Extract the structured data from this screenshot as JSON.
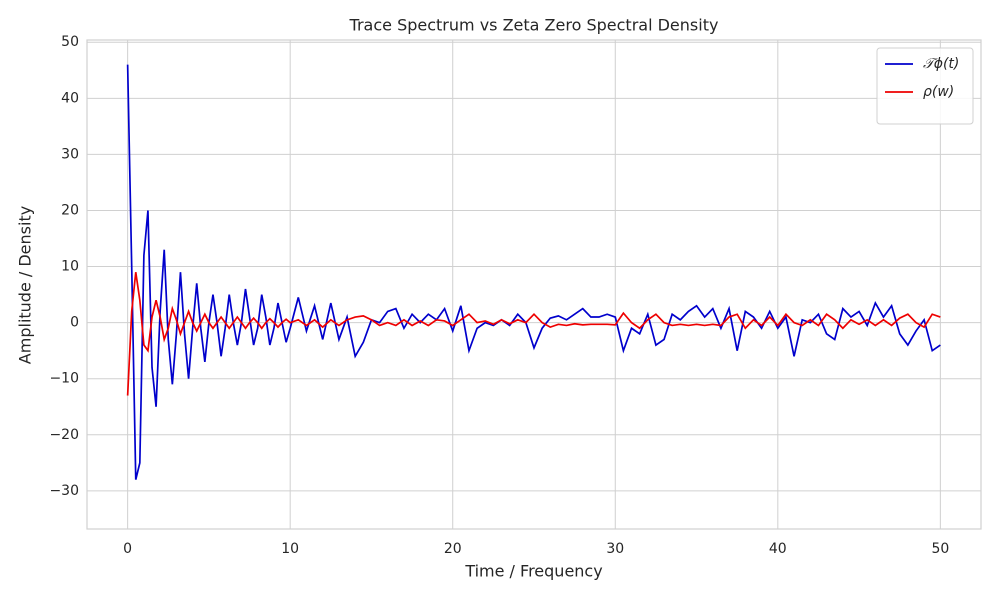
{
  "chart_data": {
    "type": "line",
    "title": "Trace Spectrum vs Zeta Zero Spectral Density",
    "xlabel": "Time / Frequency",
    "ylabel": "Amplitude / Density",
    "x": [
      0,
      0.25,
      0.5,
      0.75,
      1,
      1.25,
      1.5,
      1.75,
      2,
      2.25,
      2.5,
      2.75,
      3,
      3.25,
      3.5,
      3.75,
      4,
      4.25,
      4.5,
      4.75,
      5,
      5.25,
      5.5,
      5.75,
      6,
      6.25,
      6.5,
      6.75,
      7,
      7.25,
      7.5,
      7.75,
      8,
      8.25,
      8.5,
      8.75,
      9,
      9.25,
      9.5,
      9.75,
      10,
      10.5,
      11,
      11.5,
      12,
      12.5,
      13,
      13.5,
      14,
      14.5,
      15,
      15.5,
      16,
      16.5,
      17,
      17.5,
      18,
      18.5,
      19,
      19.5,
      20,
      20.5,
      21,
      21.5,
      22,
      22.5,
      23,
      23.5,
      24,
      24.5,
      25,
      25.5,
      26,
      26.5,
      27,
      27.5,
      28,
      28.5,
      29,
      29.5,
      30,
      30.5,
      31,
      31.5,
      32,
      32.5,
      33,
      33.5,
      34,
      34.5,
      35,
      35.5,
      36,
      36.5,
      37,
      37.5,
      38,
      38.5,
      39,
      39.5,
      40,
      40.5,
      41,
      41.5,
      42,
      42.5,
      43,
      43.5,
      44,
      44.5,
      45,
      45.5,
      46,
      46.5,
      47,
      47.5,
      48,
      48.5,
      49,
      49.5,
      50
    ],
    "series": [
      {
        "name": "𝒯ϕ(t)",
        "color": "#0000cc",
        "values": [
          46,
          10,
          -28,
          -25,
          12,
          20,
          -8,
          -15,
          2,
          13,
          -3,
          -11,
          -2,
          9,
          -2,
          -10,
          -1,
          7,
          -1,
          -7,
          0,
          5,
          0,
          -6,
          -1,
          5,
          0,
          -4,
          0,
          6,
          1,
          -4,
          -1,
          5,
          1,
          -4,
          -1,
          3.5,
          0,
          -3.5,
          -1,
          4.5,
          -1.5,
          3,
          -3,
          3.5,
          -3,
          1,
          -6,
          -3.5,
          0.5,
          0,
          2,
          2.5,
          -1,
          1.5,
          0,
          1.5,
          0.5,
          2.5,
          -1.5,
          3,
          -5,
          -1,
          0,
          -0.5,
          0.5,
          -0.5,
          1.5,
          0,
          -4.5,
          -1,
          0.8,
          1.2,
          0.5,
          1.5,
          2.5,
          1,
          1,
          1.5,
          1,
          -5,
          -1,
          -2,
          1.5,
          -4,
          -3,
          1.5,
          0.5,
          2,
          3,
          1,
          2.5,
          -1,
          2.5,
          -5,
          2,
          1,
          -1,
          2,
          -1,
          1,
          -6,
          0.5,
          0,
          1.5,
          -2,
          -3,
          2.5,
          1,
          2,
          -0.5,
          3.5,
          1,
          3,
          -2,
          -4,
          -1.5,
          0.5,
          -5,
          -4
        ]
      },
      {
        "name": "ρ(w)",
        "color": "#ee0000",
        "values": [
          -13,
          2,
          9,
          4,
          -4,
          -5,
          1,
          4,
          1,
          -3,
          -1,
          2.5,
          0.5,
          -2,
          0,
          2,
          0,
          -1.5,
          0,
          1.5,
          0,
          -1,
          0,
          1,
          0,
          -1,
          0,
          1,
          0,
          -1,
          0,
          0.8,
          0,
          -1,
          0,
          0.7,
          0,
          -0.8,
          0,
          0.6,
          0,
          0.5,
          -0.5,
          0.5,
          -0.8,
          0.5,
          -0.5,
          0.5,
          1,
          1.2,
          0.5,
          -0.5,
          0,
          -0.5,
          0.5,
          -0.5,
          0.3,
          -0.5,
          0.5,
          0.3,
          -0.5,
          0.5,
          1.5,
          0,
          0.3,
          -0.3,
          0.5,
          -0.2,
          0.5,
          0,
          1.5,
          0,
          -0.8,
          -0.3,
          -0.5,
          -0.2,
          -0.4,
          -0.3,
          -0.3,
          -0.3,
          -0.4,
          1.7,
          0,
          -1,
          0.5,
          1.5,
          0,
          -0.5,
          -0.3,
          -0.5,
          -0.3,
          -0.5,
          -0.3,
          -0.5,
          1,
          1.5,
          -1,
          0.5,
          -0.5,
          1,
          -0.5,
          1.5,
          0,
          -0.5,
          0.5,
          -0.5,
          1.5,
          0.5,
          -1,
          0.5,
          -0.3,
          0.5,
          -0.5,
          0.5,
          -0.5,
          0.8,
          1.5,
          0,
          -0.8,
          1.5,
          1
        ]
      }
    ],
    "xlim": [
      -2.5,
      52.5
    ],
    "ylim": [
      -36.8,
      50.4
    ],
    "xticks": [
      0,
      10,
      20,
      30,
      40,
      50
    ],
    "yticks": [
      {
        "value": -30,
        "label": "−30"
      },
      {
        "value": -20,
        "label": "−20"
      },
      {
        "value": -10,
        "label": "−10"
      },
      0,
      10,
      20,
      30,
      40,
      50
    ],
    "grid": true,
    "legend": "upper right"
  }
}
